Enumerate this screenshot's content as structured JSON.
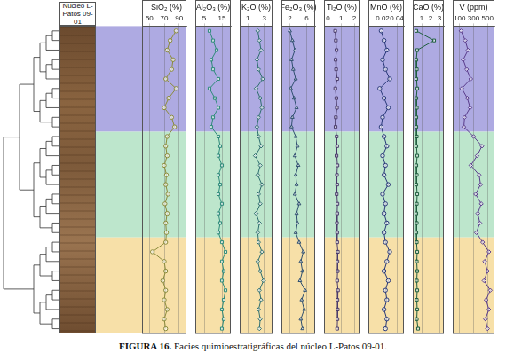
{
  "core_label": "Núcleo L-Patos 09-01",
  "caption": {
    "label": "FIGURA 16.",
    "text": "Facies quimioestratigráficas del núcleo L-Patos 09-01."
  },
  "bands": [
    {
      "first": 0,
      "last": 10,
      "color": "#aeaae2"
    },
    {
      "first": 11,
      "last": 21,
      "color": "#bde6cc"
    },
    {
      "first": 22,
      "last": 31,
      "color": "#f7e0a8"
    }
  ],
  "chart_data": [
    {
      "type": "line",
      "title": "SiO₂ (%)",
      "orientation": "horizontal",
      "color": "#8c8c3c",
      "marker": "circle",
      "grid": true,
      "tick_labels": "x",
      "categories": [
        null,
        null,
        null,
        null,
        null,
        null,
        null,
        null,
        null,
        null,
        null,
        null,
        null,
        null,
        null,
        null,
        null,
        null,
        null,
        null,
        null,
        null,
        null,
        null,
        null,
        null,
        null,
        null,
        null,
        null,
        null,
        null
      ],
      "values": [
        86,
        78,
        74,
        82,
        80,
        72,
        86,
        76,
        70,
        80,
        84,
        74,
        72,
        74,
        70,
        73,
        72,
        75,
        71,
        74,
        72,
        73,
        72,
        54,
        70,
        72,
        68,
        72,
        70,
        74,
        70,
        72
      ],
      "xlim": [
        40,
        100
      ],
      "xticks": [
        50,
        70,
        90
      ]
    },
    {
      "type": "line",
      "title": "Al₂O₃ (%)",
      "orientation": "horizontal",
      "color": "#2e8b7a",
      "marker": "square",
      "grid": true,
      "tick_labels": "x",
      "categories": [
        null,
        null,
        null,
        null,
        null,
        null,
        null,
        null,
        null,
        null,
        null,
        null,
        null,
        null,
        null,
        null,
        null,
        null,
        null,
        null,
        null,
        null,
        null,
        null,
        null,
        null,
        null,
        null,
        null,
        null,
        null,
        null
      ],
      "values": [
        8,
        10,
        12,
        9,
        10,
        13,
        8,
        11,
        13,
        10,
        9,
        13,
        14,
        13,
        15,
        13,
        14,
        13,
        15,
        13,
        14,
        13,
        15,
        17,
        15,
        16,
        15,
        17,
        16,
        15,
        16,
        15
      ],
      "xlim": [
        0,
        20
      ],
      "xticks": [
        5,
        15
      ]
    },
    {
      "type": "line",
      "title": "K₂O (%)",
      "orientation": "horizontal",
      "color": "#2f6f6f",
      "marker": "diamond",
      "grid": true,
      "tick_labels": "x",
      "categories": [
        null,
        null,
        null,
        null,
        null,
        null,
        null,
        null,
        null,
        null,
        null,
        null,
        null,
        null,
        null,
        null,
        null,
        null,
        null,
        null,
        null,
        null,
        null,
        null,
        null,
        null,
        null,
        null,
        null,
        null,
        null,
        null
      ],
      "values": [
        2.2,
        2.4,
        2.6,
        2.1,
        2.3,
        2.8,
        2.0,
        2.5,
        2.7,
        2.3,
        2.1,
        2.3,
        2.6,
        1.9,
        2.5,
        2.2,
        2.7,
        2.3,
        2.5,
        2.0,
        2.4,
        2.2,
        2.3,
        2.7,
        2.2,
        2.5,
        2.9,
        2.4,
        2.6,
        2.3,
        2.5,
        2.4
      ],
      "xlim": [
        0,
        4
      ],
      "xticks": [
        1,
        3
      ]
    },
    {
      "type": "line",
      "title": "Fe₂O₃ (%)",
      "orientation": "horizontal",
      "color": "#2f4f6f",
      "marker": "triangle",
      "grid": true,
      "tick_labels": "x",
      "categories": [
        null,
        null,
        null,
        null,
        null,
        null,
        null,
        null,
        null,
        null,
        null,
        null,
        null,
        null,
        null,
        null,
        null,
        null,
        null,
        null,
        null,
        null,
        null,
        null,
        null,
        null,
        null,
        null,
        null,
        null,
        null,
        null
      ],
      "values": [
        2.0,
        2.6,
        3.2,
        2.4,
        2.8,
        3.4,
        2.2,
        3.0,
        3.6,
        2.6,
        2.4,
        3.4,
        3.8,
        3.2,
        4.0,
        3.4,
        3.6,
        3.2,
        4.2,
        3.6,
        3.8,
        3.4,
        4.2,
        5.2,
        4.6,
        5.0,
        4.4,
        5.6,
        4.8,
        5.4,
        4.6,
        5.0
      ],
      "xlim": [
        0,
        8
      ],
      "xticks": [
        2,
        6
      ]
    },
    {
      "type": "line",
      "title": "Ti₂O (%)",
      "orientation": "horizontal",
      "color": "#4a3b6b",
      "marker": "square",
      "grid": true,
      "tick_labels": "x",
      "categories": [
        null,
        null,
        null,
        null,
        null,
        null,
        null,
        null,
        null,
        null,
        null,
        null,
        null,
        null,
        null,
        null,
        null,
        null,
        null,
        null,
        null,
        null,
        null,
        null,
        null,
        null,
        null,
        null,
        null,
        null,
        null,
        null
      ],
      "values": [
        0.55,
        0.6,
        0.65,
        0.58,
        0.62,
        0.7,
        0.56,
        0.64,
        0.68,
        0.6,
        0.58,
        0.66,
        0.7,
        0.65,
        0.72,
        0.68,
        0.7,
        0.66,
        0.72,
        0.7,
        0.68,
        0.7,
        0.7,
        0.75,
        0.72,
        0.74,
        0.7,
        0.76,
        0.72,
        0.74,
        0.72,
        0.7
      ],
      "xlim": [
        -0.3,
        2.4
      ],
      "xticks": [
        0,
        1,
        2
      ]
    },
    {
      "type": "line",
      "title": "MnO (%)",
      "orientation": "horizontal",
      "color": "#283878",
      "marker": "circle",
      "grid": true,
      "tick_labels": "x",
      "categories": [
        null,
        null,
        null,
        null,
        null,
        null,
        null,
        null,
        null,
        null,
        null,
        null,
        null,
        null,
        null,
        null,
        null,
        null,
        null,
        null,
        null,
        null,
        null,
        null,
        null,
        null,
        null,
        null,
        null,
        null,
        null,
        null
      ],
      "values": [
        0.018,
        0.022,
        0.026,
        0.02,
        0.024,
        0.03,
        0.016,
        0.022,
        0.028,
        0.02,
        0.018,
        0.022,
        0.026,
        0.02,
        0.024,
        0.022,
        0.028,
        0.02,
        0.024,
        0.022,
        0.026,
        0.022,
        0.024,
        0.03,
        0.026,
        0.022,
        0.028,
        0.024,
        0.026,
        0.022,
        0.026,
        0.024
      ],
      "xlim": [
        0,
        0.05
      ],
      "xticks": [
        0.02,
        0.04
      ]
    },
    {
      "type": "line",
      "title": "CaO (%)",
      "orientation": "horizontal",
      "color": "#1f5f3f",
      "marker": "square",
      "grid": true,
      "tick_labels": "x",
      "categories": [
        null,
        null,
        null,
        null,
        null,
        null,
        null,
        null,
        null,
        null,
        null,
        null,
        null,
        null,
        null,
        null,
        null,
        null,
        null,
        null,
        null,
        null,
        null,
        null,
        null,
        null,
        null,
        null,
        null,
        null,
        null,
        null
      ],
      "values": [
        0.4,
        2.4,
        0.5,
        0.4,
        0.45,
        0.4,
        0.5,
        0.4,
        0.45,
        0.4,
        0.4,
        0.45,
        0.4,
        0.5,
        0.4,
        0.45,
        0.4,
        0.5,
        0.45,
        0.4,
        0.45,
        0.4,
        0.45,
        0.5,
        0.45,
        0.5,
        0.45,
        0.5,
        0.45,
        0.5,
        0.45,
        0.6
      ],
      "xlim": [
        0,
        3.5
      ],
      "xticks": [
        1,
        2,
        3
      ]
    },
    {
      "type": "line",
      "title": "V (ppm)",
      "orientation": "horizontal",
      "color": "#5a3c8c",
      "marker": "diamond",
      "grid": true,
      "tick_labels": "x",
      "categories": [
        null,
        null,
        null,
        null,
        null,
        null,
        null,
        null,
        null,
        null,
        null,
        null,
        null,
        null,
        null,
        null,
        null,
        null,
        null,
        null,
        null,
        null,
        null,
        null,
        null,
        null,
        null,
        null,
        null,
        null,
        null,
        null
      ],
      "values": [
        120,
        180,
        220,
        150,
        200,
        260,
        130,
        210,
        250,
        170,
        160,
        300,
        420,
        350,
        260,
        380,
        400,
        330,
        410,
        360,
        390,
        340,
        430,
        520,
        460,
        500,
        450,
        540,
        480,
        520,
        470,
        500
      ],
      "xlim": [
        0,
        600
      ],
      "xticks": [
        100,
        300,
        500
      ]
    }
  ]
}
